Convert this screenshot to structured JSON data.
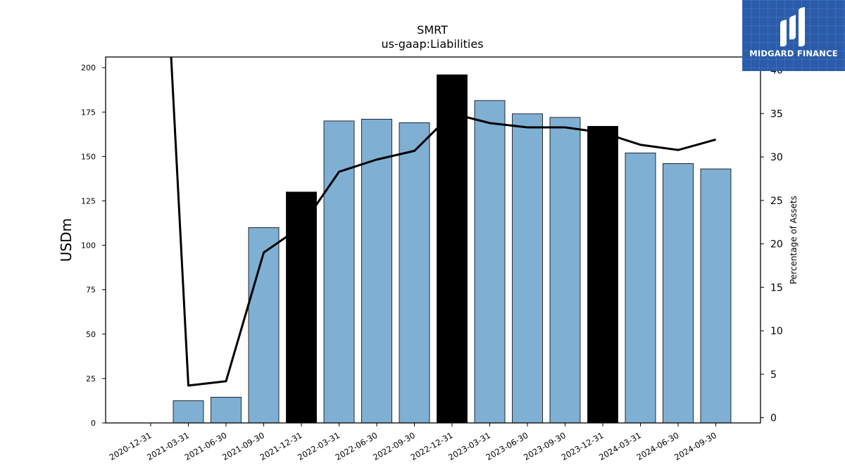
{
  "chart_data": {
    "type": "bar",
    "title": "SMRT",
    "subtitle": "us-gaap:Liabilities",
    "ylabel": "USDm",
    "y2label": "Percentage of Assets",
    "categories": [
      "2020-12-31",
      "2021-03-31",
      "2021-06-30",
      "2021-09-30",
      "2021-12-31",
      "2022-03-31",
      "2022-06-30",
      "2022-09-30",
      "2022-12-31",
      "2023-03-31",
      "2023-06-30",
      "2023-09-30",
      "2023-12-31",
      "2024-03-31",
      "2024-06-30",
      "2024-09-30"
    ],
    "series": [
      {
        "kind": "bar",
        "values": [
          null,
          12.5,
          14.5,
          110,
          130,
          170,
          171,
          169,
          196,
          181.5,
          174,
          172,
          167,
          152,
          146,
          143
        ],
        "highlight": [
          false,
          false,
          false,
          false,
          true,
          false,
          false,
          false,
          true,
          false,
          false,
          false,
          true,
          false,
          false,
          false
        ]
      },
      {
        "kind": "line",
        "axis": "right",
        "values": [
          null,
          3.7,
          4.2,
          19.0,
          22.0,
          28.3,
          29.7,
          30.7,
          35.0,
          33.9,
          33.4,
          33.4,
          32.8,
          31.4,
          30.8,
          32.0
        ],
        "pre_start_value": 45
      }
    ],
    "ylim": [
      0,
      206
    ],
    "yticks": [
      0,
      25,
      50,
      75,
      100,
      125,
      150,
      175,
      200
    ],
    "y2lim": [
      -0.6,
      41.5
    ],
    "y2ticks": [
      0,
      5,
      10,
      15,
      20,
      25,
      30,
      35,
      40
    ],
    "colors": {
      "bar": "#7fb0d4",
      "highlight": "#000000",
      "line": "#000000",
      "edge": "#000000"
    },
    "grid": false,
    "legend": "none"
  },
  "branding": {
    "name": "MIDGARD FINANCE",
    "background": "#2a5cab"
  }
}
